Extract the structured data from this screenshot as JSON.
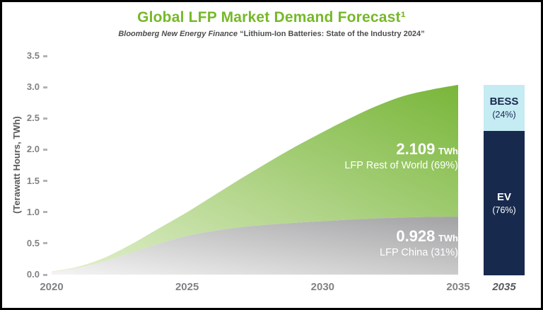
{
  "title": "Global LFP Market Demand Forecast¹",
  "subtitle": {
    "source": "Bloomberg New Energy Finance",
    "quote": "“Lithium-Ion Batteries: State of the Industry 2024”"
  },
  "colors": {
    "title_green": "#76b82a",
    "area_green_dark": "#79b63a",
    "area_green_light": "#e3f0cf",
    "area_gray_dark": "#a2a2a4",
    "area_gray_light": "#f4f4f4",
    "bar_navy": "#17294d",
    "bar_cyan": "#c5ebf3",
    "axis_text": "#808285"
  },
  "chart_data": {
    "type": "area",
    "title": "Global LFP Market Demand Forecast",
    "ylabel": "(Terawatt Hours, TWh)",
    "xlabel": "",
    "x": [
      2020,
      2021,
      2022,
      2023,
      2024,
      2025,
      2026,
      2027,
      2028,
      2029,
      2030,
      2031,
      2032,
      2033,
      2034,
      2035
    ],
    "series": [
      {
        "name": "LFP China",
        "values": [
          0.04,
          0.11,
          0.22,
          0.36,
          0.5,
          0.62,
          0.7,
          0.76,
          0.8,
          0.83,
          0.855,
          0.88,
          0.9,
          0.915,
          0.924,
          0.928
        ]
      },
      {
        "name": "LFP Rest of World",
        "values": [
          0.01,
          0.02,
          0.06,
          0.14,
          0.25,
          0.38,
          0.57,
          0.78,
          1.0,
          1.22,
          1.425,
          1.62,
          1.8,
          1.945,
          2.036,
          2.109
        ]
      }
    ],
    "stacked": true,
    "ylim": [
      0,
      3.5
    ],
    "y_ticks": [
      "0.0",
      "0.5",
      "1.0",
      "1.5",
      "2.0",
      "2.5",
      "3.0",
      "3.5"
    ],
    "x_ticks": [
      "2020",
      "2025",
      "2030",
      "2035"
    ],
    "grid": false,
    "legend": "none",
    "annotations": [
      {
        "value": "2.109",
        "unit": "TWh",
        "label": "LFP Rest of World (69%)",
        "total_2035": 2.109
      },
      {
        "value": "0.928",
        "unit": "TWh",
        "label": "LFP China (31%)",
        "total_2035": 0.928
      }
    ]
  },
  "bar_2035": {
    "xlabel": "2035",
    "segments": [
      {
        "name": "BESS",
        "label": "BESS",
        "pct": "(24%)",
        "value": 24
      },
      {
        "name": "EV",
        "label": "EV",
        "pct": "(76%)",
        "value": 76
      }
    ]
  }
}
